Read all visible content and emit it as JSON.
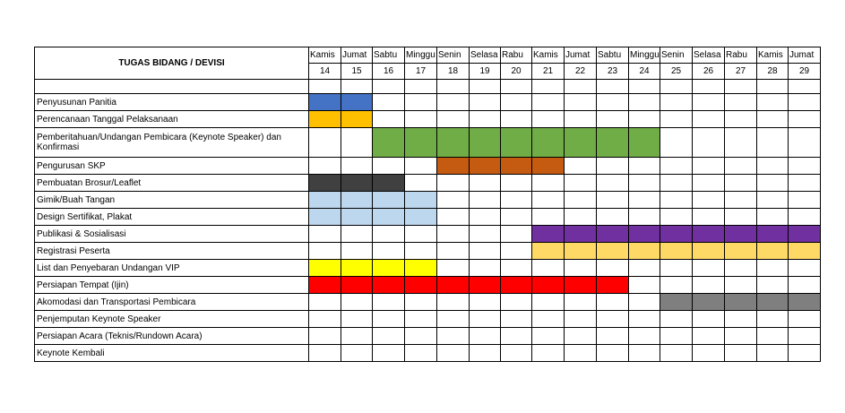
{
  "header": {
    "title": "TUGAS BIDANG / DEVISI",
    "days": [
      "Kamis",
      "Jumat",
      "Sabtu",
      "Minggu",
      "Senin",
      "Selasa",
      "Rabu",
      "Kamis",
      "Jumat",
      "Sabtu",
      "Minggu",
      "Senin",
      "Selasa",
      "Rabu",
      "Kamis",
      "Jumat"
    ],
    "dates": [
      "14",
      "15",
      "16",
      "17",
      "18",
      "19",
      "20",
      "21",
      "22",
      "23",
      "24",
      "25",
      "26",
      "27",
      "28",
      "29"
    ]
  },
  "tasks": [
    {
      "label": "Penyusunan  Panitia",
      "start": 0,
      "end": 1,
      "color": "#4472c4"
    },
    {
      "label": "Perencanaan Tanggal Pelaksanaan",
      "start": 0,
      "end": 1,
      "color": "#ffc000"
    },
    {
      "label": "Pemberitahuan/Undangan Pembicara (Keynote Speaker) dan Konfirmasi",
      "start": 2,
      "end": 10,
      "color": "#70ad47"
    },
    {
      "label": "Pengurusan SKP",
      "start": 4,
      "end": 7,
      "color": "#c55a11"
    },
    {
      "label": "Pembuatan Brosur/Leaflet",
      "start": 0,
      "end": 2,
      "color": "#404040"
    },
    {
      "label": "Gimik/Buah  Tangan",
      "start": 0,
      "end": 3,
      "color": "#bdd7ee"
    },
    {
      "label": "Design Sertifikat, Plakat",
      "start": 0,
      "end": 3,
      "color": "#bdd7ee"
    },
    {
      "label": "Publikasi & Sosialisasi",
      "start": 7,
      "end": 15,
      "color": "#7030a0"
    },
    {
      "label": "Registrasi  Peserta",
      "start": 7,
      "end": 15,
      "color": "#ffd966"
    },
    {
      "label": "List dan Penyebaran Undangan VIP",
      "start": 0,
      "end": 3,
      "color": "#ffff00"
    },
    {
      "label": "Persiapan Tempat  (Ijin)",
      "start": 0,
      "end": 9,
      "color": "#ff0000"
    },
    {
      "label": "Akomodasi  dan  Transportasi Pembicara",
      "start": 11,
      "end": 15,
      "color": "#7f7f7f"
    },
    {
      "label": "Penjemputan Keynote Speaker",
      "start": null,
      "end": null,
      "color": null
    },
    {
      "label": "Persiapan Acara  (Teknis/Rundown Acara)",
      "start": null,
      "end": null,
      "color": null
    },
    {
      "label": "Keynote Kembali",
      "start": null,
      "end": null,
      "color": null
    }
  ]
}
